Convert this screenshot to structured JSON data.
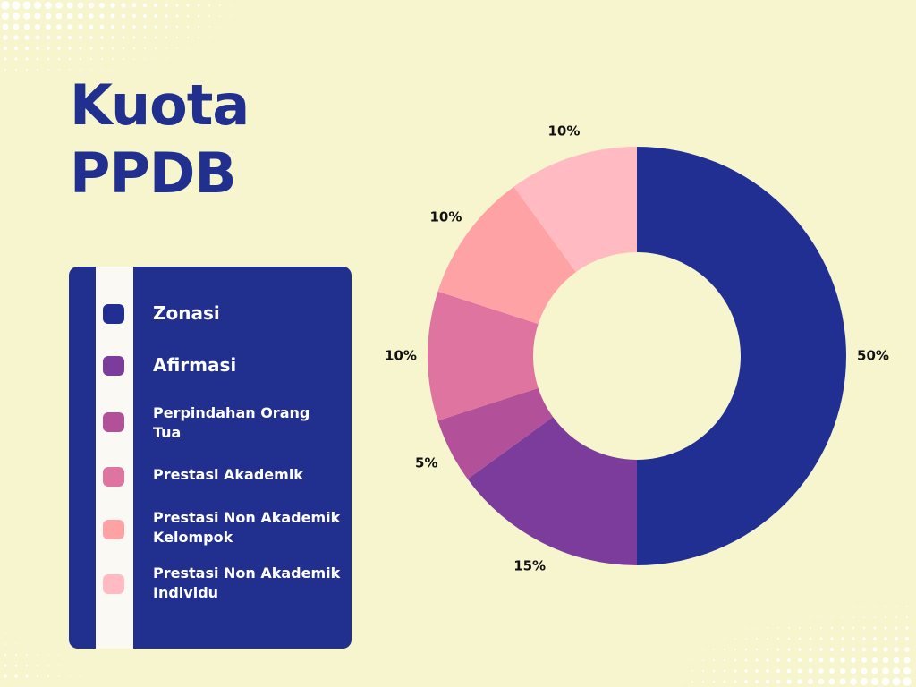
{
  "title_line1": "Kuota",
  "title_line2": "PPDB",
  "chart_data": {
    "type": "pie",
    "categories": [
      "Zonasi",
      "Afirmasi",
      "Perpindahan Orang Tua",
      "Prestasi Akademik",
      "Prestasi Non Akademik Kelompok",
      "Prestasi Non Akademik Individu"
    ],
    "values": [
      50,
      15,
      5,
      10,
      10,
      10
    ],
    "value_labels": [
      "50%",
      "15%",
      "5%",
      "10%",
      "10%",
      "10%"
    ],
    "colors": [
      "#212F92",
      "#7B3C9C",
      "#B25199",
      "#DF74A1",
      "#FFA2A6",
      "#FFBBC1"
    ],
    "legend_placement": "left"
  },
  "legend": [
    {
      "label": "Zonasi",
      "color": "#212F92"
    },
    {
      "label": "Afirmasi",
      "color": "#7B3C9C"
    },
    {
      "label": "Perpindahan Orang Tua",
      "color": "#B25199"
    },
    {
      "label": "Prestasi Akademik",
      "color": "#DF74A1"
    },
    {
      "label": "Prestasi Non Akademik Kelompok",
      "color": "#FFA2A6"
    },
    {
      "label": "Prestasi Non Akademik Individu",
      "color": "#FFBBC1"
    }
  ]
}
